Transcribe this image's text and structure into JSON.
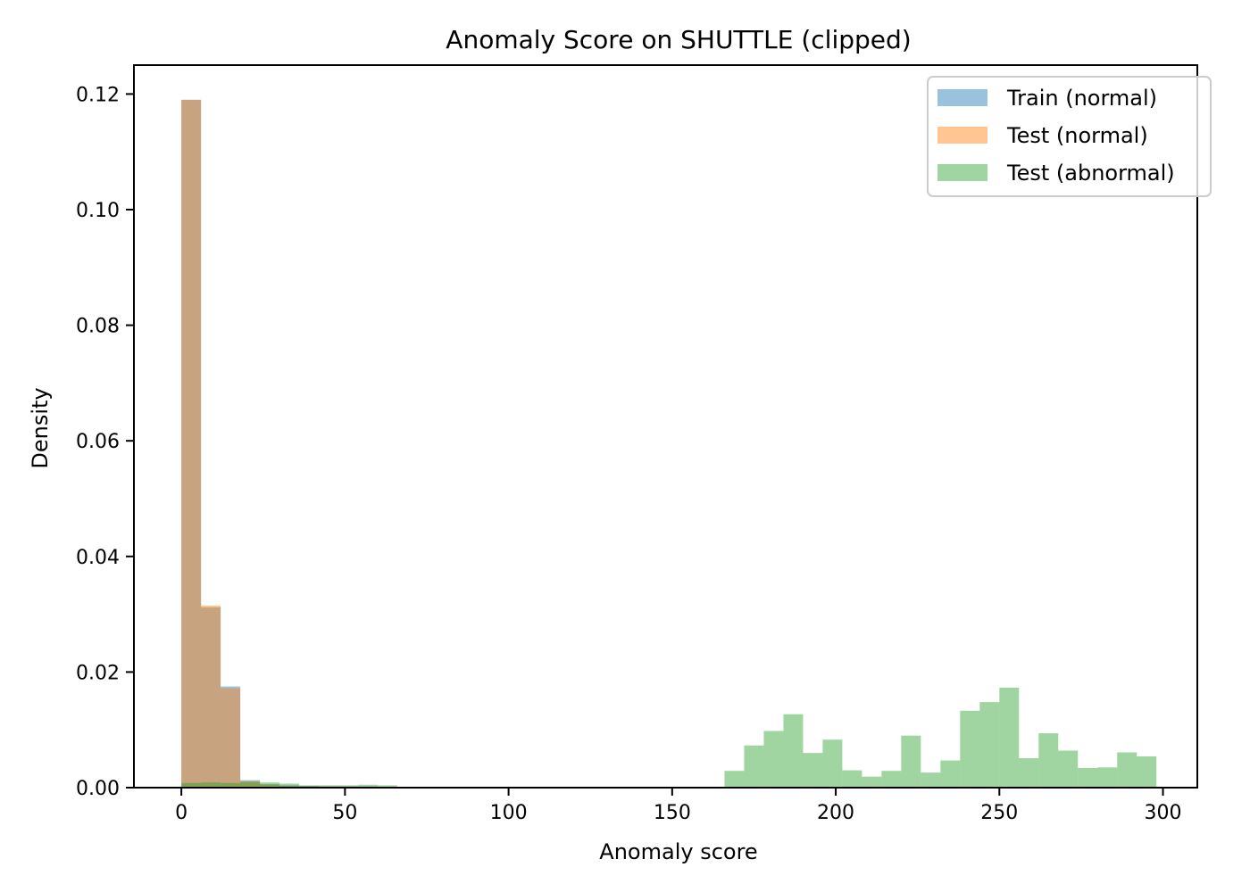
{
  "chart_data": {
    "type": "histogram",
    "title": "Anomaly Score on SHUTTLE (clipped)",
    "xlabel": "Anomaly score",
    "ylabel": "Density",
    "xlim": [
      -14.5,
      310.5
    ],
    "ylim": [
      0,
      0.125
    ],
    "xticks": [
      0,
      50,
      100,
      150,
      200,
      250,
      300
    ],
    "yticks": [
      0.0,
      0.02,
      0.04,
      0.06,
      0.08,
      0.1,
      0.12
    ],
    "grid": false,
    "legend_position": "upper right",
    "series": [
      {
        "name": "Train (normal)",
        "color": "#1f77b4",
        "alpha": 0.45,
        "bins": [
          {
            "x0": 0,
            "x1": 6,
            "density": 0.119
          },
          {
            "x0": 6,
            "x1": 12,
            "density": 0.0312
          },
          {
            "x0": 12,
            "x1": 18,
            "density": 0.0175
          },
          {
            "x0": 18,
            "x1": 24,
            "density": 0.0013
          },
          {
            "x0": 24,
            "x1": 30,
            "density": 0.0006
          },
          {
            "x0": 30,
            "x1": 36,
            "density": 0.0004
          },
          {
            "x0": 36,
            "x1": 42,
            "density": 0.0003
          },
          {
            "x0": 42,
            "x1": 48,
            "density": 0.0002
          },
          {
            "x0": 48,
            "x1": 54,
            "density": 0.0002
          },
          {
            "x0": 54,
            "x1": 60,
            "density": 0.0002
          },
          {
            "x0": 60,
            "x1": 66,
            "density": 0.0001
          }
        ]
      },
      {
        "name": "Test (normal)",
        "color": "#ff7f0e",
        "alpha": 0.45,
        "bins": [
          {
            "x0": 0,
            "x1": 6,
            "density": 0.119
          },
          {
            "x0": 6,
            "x1": 12,
            "density": 0.0315
          },
          {
            "x0": 12,
            "x1": 18,
            "density": 0.0172
          },
          {
            "x0": 18,
            "x1": 24,
            "density": 0.0011
          },
          {
            "x0": 24,
            "x1": 30,
            "density": 0.0005
          },
          {
            "x0": 30,
            "x1": 36,
            "density": 0.0003
          },
          {
            "x0": 36,
            "x1": 42,
            "density": 0.0002
          },
          {
            "x0": 42,
            "x1": 48,
            "density": 0.0002
          },
          {
            "x0": 48,
            "x1": 54,
            "density": 0.0002
          },
          {
            "x0": 54,
            "x1": 60,
            "density": 0.0001
          },
          {
            "x0": 60,
            "x1": 66,
            "density": 0.0001
          }
        ]
      },
      {
        "name": "Test (abnormal)",
        "color": "#2ca02c",
        "alpha": 0.45,
        "bins": [
          {
            "x0": 0,
            "x1": 6,
            "density": 0.0008
          },
          {
            "x0": 6,
            "x1": 12,
            "density": 0.0009
          },
          {
            "x0": 12,
            "x1": 18,
            "density": 0.0008
          },
          {
            "x0": 18,
            "x1": 24,
            "density": 0.001
          },
          {
            "x0": 24,
            "x1": 30,
            "density": 0.0009
          },
          {
            "x0": 30,
            "x1": 36,
            "density": 0.0007
          },
          {
            "x0": 36,
            "x1": 42,
            "density": 0.0004
          },
          {
            "x0": 42,
            "x1": 48,
            "density": 0.0004
          },
          {
            "x0": 48,
            "x1": 54,
            "density": 0.0004
          },
          {
            "x0": 54,
            "x1": 60,
            "density": 0.0005
          },
          {
            "x0": 60,
            "x1": 66,
            "density": 0.0004
          },
          {
            "x0": 166,
            "x1": 172,
            "density": 0.0029
          },
          {
            "x0": 172,
            "x1": 178,
            "density": 0.0073
          },
          {
            "x0": 178,
            "x1": 184,
            "density": 0.0098
          },
          {
            "x0": 184,
            "x1": 190,
            "density": 0.0127
          },
          {
            "x0": 190,
            "x1": 196,
            "density": 0.006
          },
          {
            "x0": 196,
            "x1": 202,
            "density": 0.0083
          },
          {
            "x0": 202,
            "x1": 208,
            "density": 0.003
          },
          {
            "x0": 208,
            "x1": 214,
            "density": 0.0019
          },
          {
            "x0": 214,
            "x1": 220,
            "density": 0.0029
          },
          {
            "x0": 220,
            "x1": 226,
            "density": 0.009
          },
          {
            "x0": 226,
            "x1": 232,
            "density": 0.0026
          },
          {
            "x0": 232,
            "x1": 238,
            "density": 0.0047
          },
          {
            "x0": 238,
            "x1": 244,
            "density": 0.0133
          },
          {
            "x0": 244,
            "x1": 250,
            "density": 0.0148
          },
          {
            "x0": 250,
            "x1": 256,
            "density": 0.0173
          },
          {
            "x0": 256,
            "x1": 262,
            "density": 0.0051
          },
          {
            "x0": 262,
            "x1": 268,
            "density": 0.0094
          },
          {
            "x0": 268,
            "x1": 274,
            "density": 0.0064
          },
          {
            "x0": 274,
            "x1": 280,
            "density": 0.0034
          },
          {
            "x0": 280,
            "x1": 286,
            "density": 0.0035
          },
          {
            "x0": 286,
            "x1": 292,
            "density": 0.0061
          },
          {
            "x0": 292,
            "x1": 298,
            "density": 0.0054
          }
        ]
      }
    ]
  }
}
